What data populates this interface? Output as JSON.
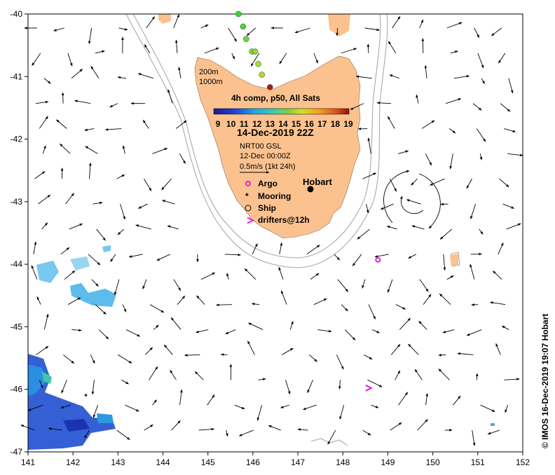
{
  "map": {
    "lon_range": [
      141,
      152
    ],
    "lat_range": [
      -47,
      -40
    ],
    "lon_ticks": [
      "141",
      "142",
      "143",
      "144",
      "145",
      "146",
      "147",
      "148",
      "149",
      "150",
      "151",
      "152"
    ],
    "lat_ticks": [
      "-40",
      "-41",
      "-42",
      "-43",
      "-44",
      "-45",
      "-46",
      "-47"
    ],
    "land_color": "#fbc28f",
    "isobath_color": "#a9a9a9"
  },
  "legend": {
    "isobath_200": "200m",
    "isobath_1000": "1000m",
    "sst_title": "4h comp, p50, All Sats",
    "colorbar_ticks": [
      "9",
      "10",
      "11",
      "12",
      "13",
      "14",
      "15",
      "16",
      "17",
      "18",
      "19"
    ],
    "date": "14-Dec-2019 22Z",
    "current_source": "NRT00 GSL",
    "current_date": "12-Dec 00:00Z",
    "scale_label": "0.5m/s (1kt 24h)",
    "argo": "Argo",
    "mooring": "Mooring",
    "ship": "Ship",
    "drifters": "drifters@12h"
  },
  "places": {
    "hobart": "Hobart"
  },
  "credit": "© IMOS 16-Dec-2019 19:07 Hobart",
  "markers": {
    "ship_track": [
      [
        145.68,
        -40.0
      ],
      [
        145.78,
        -40.2
      ],
      [
        145.85,
        -40.4
      ],
      [
        145.98,
        -40.6
      ],
      [
        146.05,
        -40.6
      ],
      [
        146.12,
        -40.8
      ],
      [
        146.2,
        -40.97
      ],
      [
        146.38,
        -41.17
      ]
    ],
    "argo": [
      [
        148.78,
        -43.93
      ]
    ],
    "drifter_arrows": [
      [
        145.97,
        -43.3
      ],
      [
        148.6,
        -45.98
      ]
    ],
    "mooring": [
      [
        142.3,
        -46.1
      ]
    ]
  }
}
